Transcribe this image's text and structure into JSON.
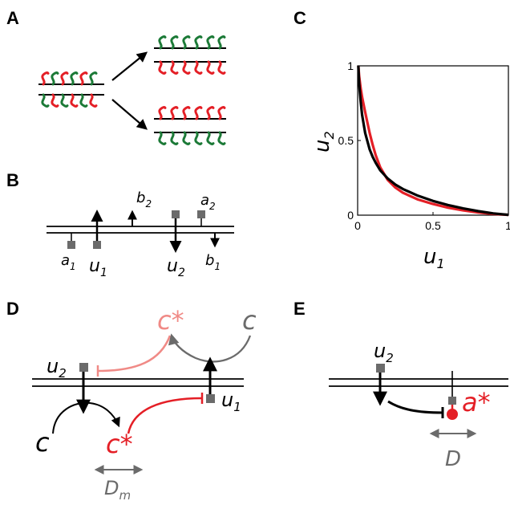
{
  "panels": {
    "a": "A",
    "b": "B",
    "c": "C",
    "d": "D",
    "e": "E"
  },
  "colors": {
    "red": "#e41f26",
    "green": "#1c7a37",
    "gray": "#6b6b6b",
    "light_red": "#f08a86",
    "black": "#000000"
  },
  "panel_b": {
    "u1_base": "u",
    "u1_sub": "1",
    "u2_base": "u",
    "u2_sub": "2",
    "a1_base": "a",
    "a1_sub": "1",
    "a2_base": "a",
    "a2_sub": "2",
    "b1_base": "b",
    "b1_sub": "1",
    "b2_base": "b",
    "b2_sub": "2"
  },
  "panel_d": {
    "c_star_top": "c*",
    "c_top": "c",
    "u2_base": "u",
    "u2_sub": "2",
    "u1_base": "u",
    "u1_sub": "1",
    "c_bottom": "c",
    "c_star_bottom": "c*",
    "dm_base": "D",
    "dm_sub": "m"
  },
  "panel_e": {
    "u2_base": "u",
    "u2_sub": "2",
    "a_star": "a*",
    "d_label": "D"
  },
  "chart_data": {
    "type": "line",
    "xlabel_base": "u",
    "xlabel_sub": "1",
    "ylabel_base": "u",
    "ylabel_sub": "2",
    "xlim": [
      0,
      1
    ],
    "ylim": [
      0,
      1
    ],
    "x_ticks": [
      {
        "v": 0,
        "label": "0"
      },
      {
        "v": 0.5,
        "label": "0.5"
      },
      {
        "v": 1,
        "label": "1"
      }
    ],
    "y_ticks": [
      {
        "v": 0,
        "label": "0"
      },
      {
        "v": 0.5,
        "label": "0.5"
      },
      {
        "v": 1,
        "label": "1"
      }
    ],
    "grid": false,
    "series": [
      {
        "color": "#e41f26",
        "x": [
          0.005,
          0.01,
          0.02,
          0.03,
          0.05,
          0.08,
          0.1,
          0.12,
          0.15,
          0.2,
          0.25,
          0.3,
          0.4,
          0.5,
          0.6,
          0.7,
          0.8,
          0.9,
          1.0
        ],
        "y": [
          1.0,
          0.93,
          0.85,
          0.79,
          0.69,
          0.55,
          0.47,
          0.4,
          0.32,
          0.235,
          0.185,
          0.15,
          0.105,
          0.075,
          0.05,
          0.032,
          0.018,
          0.008,
          0.002
        ]
      },
      {
        "color": "#000000",
        "x": [
          0.005,
          0.01,
          0.02,
          0.03,
          0.05,
          0.08,
          0.1,
          0.12,
          0.15,
          0.2,
          0.25,
          0.3,
          0.4,
          0.5,
          0.6,
          0.7,
          0.8,
          0.9,
          1.0
        ],
        "y": [
          1.0,
          0.88,
          0.76,
          0.67,
          0.55,
          0.44,
          0.39,
          0.35,
          0.3,
          0.245,
          0.205,
          0.175,
          0.13,
          0.095,
          0.068,
          0.045,
          0.027,
          0.012,
          0.002
        ]
      }
    ]
  }
}
